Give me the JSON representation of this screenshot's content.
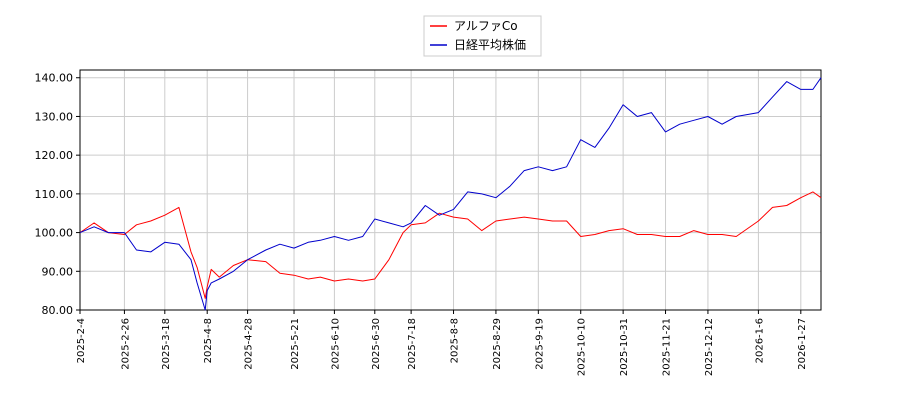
{
  "chart_data": {
    "type": "line",
    "title": "",
    "xlabel": "",
    "ylabel": "",
    "grid": true,
    "legend_placement": "top-center",
    "ylim": [
      80,
      142
    ],
    "y_ticks": [
      "80.00",
      "90.00",
      "100.00",
      "110.00",
      "120.00",
      "130.00",
      "140.00"
    ],
    "x_ticks": [
      "2025-2-4",
      "2025-2-26",
      "2025-3-18",
      "2025-4-8",
      "2025-4-28",
      "2025-5-21",
      "2025-6-10",
      "2025-6-30",
      "2025-7-18",
      "2025-8-8",
      "2025-8-29",
      "2025-9-19",
      "2025-10-10",
      "2025-10-31",
      "2025-11-21",
      "2025-12-12",
      "2026-1-6",
      "2026-1-27"
    ],
    "x": [
      "2025-2-4",
      "2025-2-11",
      "2025-2-18",
      "2025-2-26",
      "2025-3-4",
      "2025-3-11",
      "2025-3-18",
      "2025-3-25",
      "2025-3-31",
      "2025-4-3",
      "2025-4-7",
      "2025-4-8",
      "2025-4-10",
      "2025-4-14",
      "2025-4-21",
      "2025-4-28",
      "2025-5-7",
      "2025-5-14",
      "2025-5-21",
      "2025-5-28",
      "2025-6-3",
      "2025-6-10",
      "2025-6-17",
      "2025-6-24",
      "2025-6-30",
      "2025-7-7",
      "2025-7-14",
      "2025-7-18",
      "2025-7-25",
      "2025-8-1",
      "2025-8-8",
      "2025-8-15",
      "2025-8-22",
      "2025-8-29",
      "2025-9-5",
      "2025-9-12",
      "2025-9-19",
      "2025-9-26",
      "2025-10-3",
      "2025-10-10",
      "2025-10-17",
      "2025-10-24",
      "2025-10-31",
      "2025-11-7",
      "2025-11-14",
      "2025-11-21",
      "2025-11-28",
      "2025-12-5",
      "2025-12-12",
      "2025-12-19",
      "2025-12-26",
      "2026-1-6",
      "2026-1-13",
      "2026-1-20",
      "2026-1-27",
      "2026-2-2",
      "2026-2-6"
    ],
    "series": [
      {
        "name": "アルファCo",
        "color": "#ff0000",
        "values": [
          100,
          102.5,
          100,
          99.5,
          102,
          103,
          104.5,
          106.5,
          95,
          91,
          83,
          86,
          90.5,
          88.5,
          91.5,
          93,
          92.5,
          89.5,
          89,
          88,
          88.5,
          87.5,
          88,
          87.5,
          88,
          93,
          100,
          102,
          102.5,
          105,
          104,
          103.5,
          100.5,
          103,
          103.5,
          104,
          103.5,
          103,
          103,
          99,
          99.5,
          100.5,
          101,
          99.5,
          99.5,
          99,
          99,
          100.5,
          99.5,
          99.5,
          99,
          103,
          106.5,
          107,
          109,
          110.5,
          109
        ]
      },
      {
        "name": "日経平均株価",
        "color": "#0000cc",
        "values": [
          100,
          101.5,
          100,
          100,
          95.5,
          95,
          97.5,
          97,
          93,
          87,
          80,
          85,
          87,
          88,
          90,
          93,
          95.5,
          97,
          96,
          97.5,
          98,
          99,
          98,
          99,
          103.5,
          102.5,
          101.5,
          102.5,
          107,
          104.5,
          106,
          110.5,
          110,
          109,
          112,
          116,
          117,
          116,
          117,
          124,
          122,
          127,
          133,
          130,
          131,
          126,
          128,
          129,
          130,
          128,
          130,
          131,
          135,
          139,
          137,
          137,
          140
        ]
      }
    ]
  }
}
